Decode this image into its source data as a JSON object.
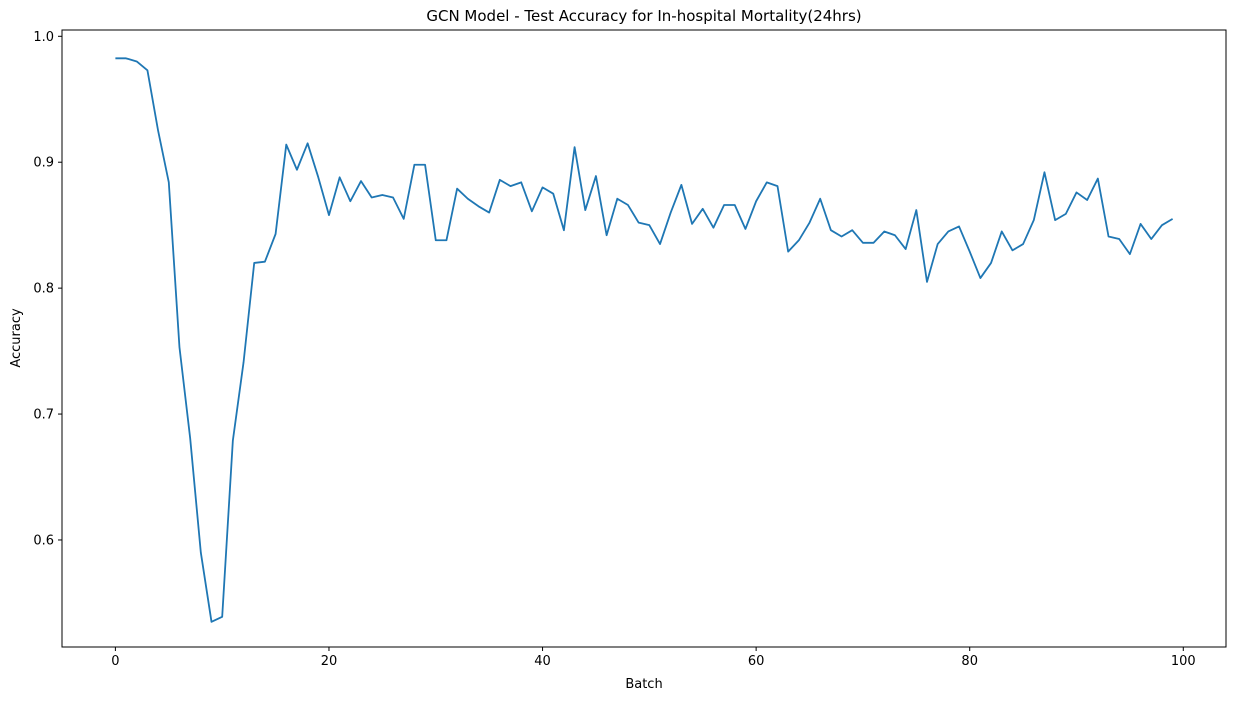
{
  "chart_data": {
    "type": "line",
    "title": "GCN Model - Test Accuracy for In-hospital Mortality(24hrs)",
    "xlabel": "Batch",
    "ylabel": "Accuracy",
    "xlim": [
      -5,
      104
    ],
    "ylim": [
      0.515,
      1.005
    ],
    "xticks": [
      0,
      20,
      40,
      60,
      80,
      100
    ],
    "yticks": [
      0.6,
      0.7,
      0.8,
      0.9,
      1.0
    ],
    "xtick_labels": [
      "0",
      "20",
      "40",
      "60",
      "80",
      "100"
    ],
    "ytick_labels": [
      "0.6",
      "0.7",
      "0.8",
      "0.9",
      "1.0"
    ],
    "grid": false,
    "series": [
      {
        "color": "#1f77b4",
        "x": [
          0,
          1,
          2,
          3,
          4,
          5,
          6,
          7,
          8,
          9,
          10,
          11,
          12,
          13,
          14,
          15,
          16,
          17,
          18,
          19,
          20,
          21,
          22,
          23,
          24,
          25,
          26,
          27,
          28,
          29,
          30,
          31,
          32,
          33,
          34,
          35,
          36,
          37,
          38,
          39,
          40,
          41,
          42,
          43,
          44,
          45,
          46,
          47,
          48,
          49,
          50,
          51,
          52,
          53,
          54,
          55,
          56,
          57,
          58,
          59,
          60,
          61,
          62,
          63,
          64,
          65,
          66,
          67,
          68,
          69,
          70,
          71,
          72,
          73,
          74,
          75,
          76,
          77,
          78,
          79,
          80,
          81,
          82,
          83,
          84,
          85,
          86,
          87,
          88,
          89,
          90,
          91,
          92,
          93,
          94,
          95,
          96,
          97,
          98,
          99
        ],
        "y": [
          0.9825,
          0.9825,
          0.98,
          0.973,
          0.925,
          0.884,
          0.753,
          0.681,
          0.59,
          0.535,
          0.539,
          0.679,
          0.741,
          0.82,
          0.821,
          0.843,
          0.914,
          0.894,
          0.915,
          0.888,
          0.858,
          0.888,
          0.869,
          0.885,
          0.872,
          0.874,
          0.872,
          0.855,
          0.898,
          0.898,
          0.838,
          0.838,
          0.879,
          0.871,
          0.865,
          0.86,
          0.886,
          0.881,
          0.884,
          0.861,
          0.88,
          0.875,
          0.846,
          0.912,
          0.862,
          0.889,
          0.842,
          0.871,
          0.866,
          0.852,
          0.85,
          0.835,
          0.86,
          0.882,
          0.851,
          0.863,
          0.848,
          0.866,
          0.866,
          0.847,
          0.869,
          0.884,
          0.881,
          0.829,
          0.838,
          0.852,
          0.871,
          0.846,
          0.841,
          0.846,
          0.836,
          0.836,
          0.845,
          0.842,
          0.831,
          0.862,
          0.805,
          0.835,
          0.845,
          0.849,
          0.829,
          0.808,
          0.82,
          0.845,
          0.83,
          0.835,
          0.854,
          0.892,
          0.854,
          0.859,
          0.876,
          0.87,
          0.887,
          0.841,
          0.839,
          0.827,
          0.851,
          0.839,
          0.85,
          0.855
        ]
      }
    ]
  }
}
